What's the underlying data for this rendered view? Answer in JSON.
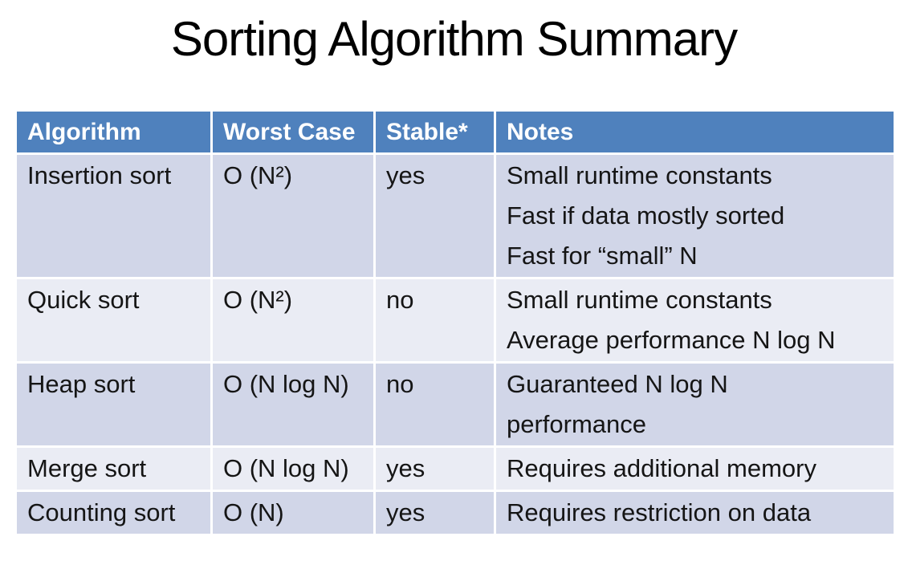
{
  "title": "Sorting Algorithm Summary",
  "table": {
    "columns": [
      "Algorithm",
      "Worst Case",
      "Stable*",
      "Notes"
    ],
    "rows": [
      {
        "algorithm": "Insertion sort",
        "worst_case": "O (N²)",
        "stable": "yes",
        "notes": "Small runtime constants\nFast if data mostly sorted\nFast for “small” N"
      },
      {
        "algorithm": "Quick sort",
        "worst_case": "O (N²)",
        "stable": "no",
        "notes": "Small runtime constants\nAverage performance N log N"
      },
      {
        "algorithm": "Heap sort",
        "worst_case": "O (N log N)",
        "stable": "no",
        "notes": "Guaranteed N log N\nperformance"
      },
      {
        "algorithm": "Merge sort",
        "worst_case": "O (N log N)",
        "stable": "yes",
        "notes": "Requires additional memory"
      },
      {
        "algorithm": "Counting sort",
        "worst_case": "O (N)",
        "stable": "yes",
        "notes": "Requires restriction on data"
      }
    ],
    "colors": {
      "header_bg": "#4f81bd",
      "header_text": "#ffffff",
      "band_dark": "#d1d6e8",
      "band_light": "#eaecf4",
      "body_text": "#151515",
      "title_text": "#000000"
    }
  }
}
